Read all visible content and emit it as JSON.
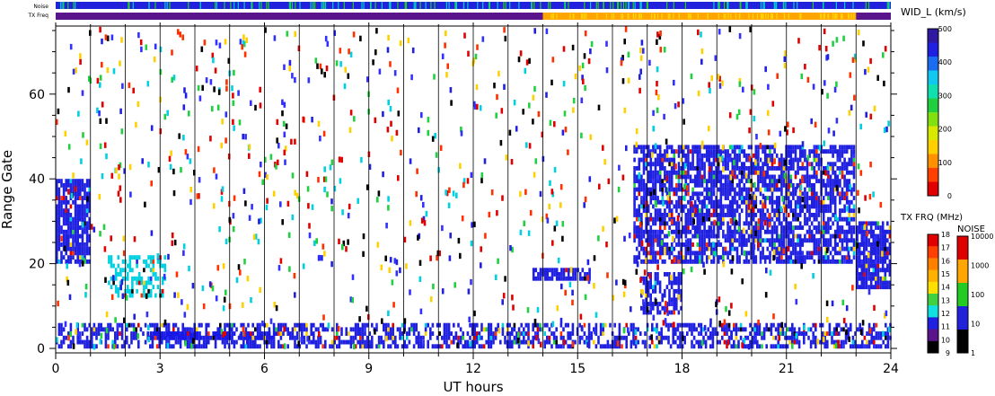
{
  "chart_data": {
    "type": "heatmap",
    "xlabel": "UT hours",
    "ylabel": "Range Gate",
    "xlim": [
      0,
      24
    ],
    "ylim": [
      0,
      75
    ],
    "x_ticks": [
      "0",
      "3",
      "6",
      "9",
      "12",
      "15",
      "18",
      "21",
      "24"
    ],
    "y_ticks": [
      "0",
      "20",
      "40",
      "60"
    ],
    "vertical_lines_at_hours": [
      1,
      2,
      3,
      4,
      5,
      6,
      7,
      8,
      9,
      10,
      11,
      12,
      13,
      14,
      15,
      16,
      17,
      18,
      19,
      20,
      21,
      22,
      23
    ],
    "top_bars": {
      "noise_label": "Noise",
      "txfreq_label": "TX Freq",
      "noise_color": "#2222dd",
      "noise_speckle_colors": [
        "#22cc22",
        "#00cccc"
      ],
      "txfreq_segments": [
        {
          "start": 0,
          "end": 14,
          "color": "#5a148c"
        },
        {
          "start": 14,
          "end": 23,
          "color": "#ffa500",
          "speckle": "#ffd700"
        },
        {
          "start": 23,
          "end": 24,
          "color": "#5a148c"
        }
      ]
    },
    "colorbar_width": {
      "title": "WID_L (km/s)",
      "ticks": [
        "500",
        "400",
        "300",
        "200",
        "100",
        "0"
      ],
      "colors": [
        "#3018a0",
        "#2020e0",
        "#1a6cf0",
        "#10c8f0",
        "#10e0b0",
        "#20d040",
        "#80e010",
        "#d8e800",
        "#ffd000",
        "#ff9000",
        "#ff4000",
        "#e00000"
      ]
    },
    "colorbar_txfreq": {
      "title": "TX FRQ (MHz)",
      "ticks": [
        "18",
        "17",
        "16",
        "15",
        "14",
        "13",
        "12",
        "11",
        "10",
        "9"
      ],
      "colors": [
        "#e00000",
        "#ff4000",
        "#ff8000",
        "#ffb000",
        "#ffe000",
        "#40d040",
        "#10e0e0",
        "#2020e0",
        "#5a148c",
        "#000000"
      ]
    },
    "colorbar_noise": {
      "title": "NOISE",
      "ticks": [
        "10000",
        "1000",
        "100",
        "10",
        "1"
      ],
      "colors": [
        "#e00000",
        "#ffa500",
        "#22cc22",
        "#2222dd",
        "#000000"
      ]
    },
    "scatter_palette": [
      "#e00000",
      "#ff3000",
      "#2020e0",
      "#3030ff",
      "#00d0e0",
      "#20d040",
      "#ffd000",
      "#000000"
    ],
    "features": [
      {
        "name": "persistent near-range echoes",
        "x_range": [
          0,
          24
        ],
        "gate_range": [
          0,
          6
        ],
        "color": "#2020e0",
        "density": 0.55
      },
      {
        "name": "band 3-4 UT",
        "x_range": [
          2.7,
          4.2
        ],
        "gate_range": [
          2,
          4
        ],
        "color": "#1818e8",
        "density": 0.95
      },
      {
        "name": "band 4.5-6.3 UT",
        "x_range": [
          4.5,
          6.3
        ],
        "gate_range": [
          2,
          4
        ],
        "color": "#1818e8",
        "density": 0.8
      },
      {
        "name": "early patch",
        "x_range": [
          0,
          1
        ],
        "gate_range": [
          20,
          40
        ],
        "color": "#2020e0",
        "density": 0.85
      },
      {
        "name": "morning mixed patch",
        "x_range": [
          1.5,
          3.2
        ],
        "gate_range": [
          12,
          22
        ],
        "color": "#00d0e0",
        "density": 0.5
      },
      {
        "name": "14-15 UT patch",
        "x_range": [
          13.7,
          15.4
        ],
        "gate_range": [
          16,
          19
        ],
        "color": "#2020e0",
        "density": 0.85
      },
      {
        "name": "main evening patch",
        "x_range": [
          16.6,
          23
        ],
        "gate_range": [
          20,
          48
        ],
        "color": "#2020e0",
        "density": 0.7
      },
      {
        "name": "late patch",
        "x_range": [
          23,
          24
        ],
        "gate_range": [
          14,
          30
        ],
        "color": "#2020e0",
        "density": 0.85
      },
      {
        "name": "17-18 UT low patch",
        "x_range": [
          16.8,
          18
        ],
        "gate_range": [
          8,
          18
        ],
        "color": "#2020e0",
        "density": 0.6
      }
    ]
  }
}
